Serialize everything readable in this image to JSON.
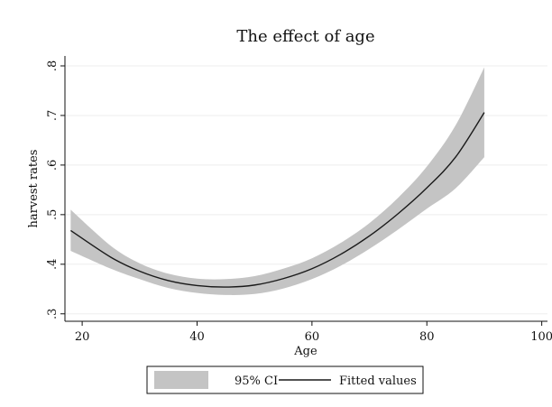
{
  "chart_data": {
    "type": "line",
    "title": "The effect of age",
    "xlabel": "Age",
    "ylabel": "harvest rates",
    "xlim": [
      17,
      101
    ],
    "ylim": [
      0.285,
      0.82
    ],
    "x_ticks": [
      20,
      40,
      60,
      80,
      100
    ],
    "x_tick_labels": [
      "20",
      "40",
      "60",
      "80",
      "100"
    ],
    "y_ticks": [
      0.3,
      0.4,
      0.5,
      0.6,
      0.7,
      0.8
    ],
    "y_tick_labels": [
      ".3",
      ".4",
      ".5",
      ".6",
      ".7",
      ".8"
    ],
    "grid": "horizontal",
    "legend_position": "bottom",
    "series": [
      {
        "name": "Fitted values",
        "kind": "line",
        "color": "#1a1a1a",
        "x": [
          18,
          25,
          30,
          35,
          40,
          45,
          50,
          55,
          60,
          65,
          70,
          75,
          80,
          85,
          90
        ],
        "y": [
          0.468,
          0.414,
          0.386,
          0.367,
          0.357,
          0.354,
          0.358,
          0.371,
          0.391,
          0.42,
          0.457,
          0.502,
          0.554,
          0.616,
          0.706
        ]
      },
      {
        "name": "95% CI",
        "kind": "band",
        "color": "#c4c4c4",
        "x": [
          18,
          25,
          30,
          35,
          40,
          45,
          50,
          55,
          60,
          65,
          70,
          75,
          80,
          85,
          90
        ],
        "upper": [
          0.51,
          0.437,
          0.402,
          0.381,
          0.371,
          0.37,
          0.376,
          0.391,
          0.412,
          0.443,
          0.483,
          0.534,
          0.597,
          0.68,
          0.797
        ],
        "lower": [
          0.427,
          0.391,
          0.37,
          0.352,
          0.342,
          0.338,
          0.34,
          0.351,
          0.37,
          0.397,
          0.431,
          0.47,
          0.512,
          0.553,
          0.616
        ]
      }
    ],
    "legend": [
      {
        "label": "95% CI",
        "kind": "band",
        "color": "#c4c4c4"
      },
      {
        "label": "Fitted values",
        "kind": "line",
        "color": "#1a1a1a"
      }
    ]
  }
}
